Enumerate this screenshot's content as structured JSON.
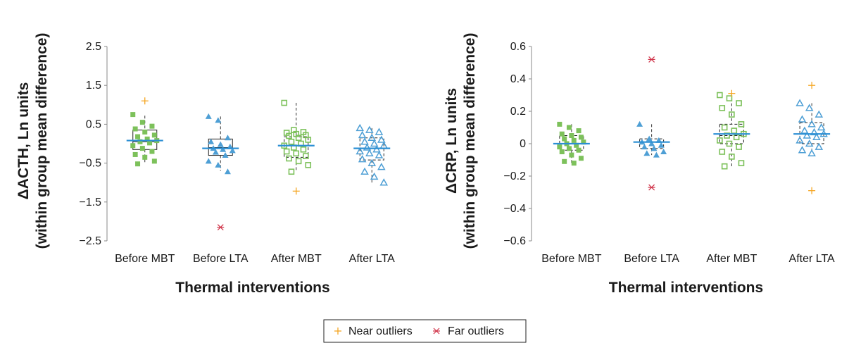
{
  "chart_data": [
    {
      "type": "scatter",
      "xlabel": "Thermal interventions",
      "ylabel": "ΔACTH, Ln units (within group mean difference)",
      "ylabel_lines": [
        "ΔACTH, Ln units",
        "(within group mean difference)"
      ],
      "categories": [
        "Before MBT",
        "Before LTA",
        "After MBT",
        "After LTA"
      ],
      "ylim": [
        -2.5,
        2.5
      ],
      "yticks": [
        2.5,
        1.5,
        0.5,
        -0.5,
        -1.5,
        -2.5
      ],
      "ytick_labels": [
        "2.5",
        "1.5",
        "0.5",
        "−0.5",
        "−1.5",
        "−2.5"
      ],
      "grid": false,
      "groups": [
        {
          "category": "Before MBT",
          "marker": "square-filled",
          "color": "#7dc15b",
          "mean": 0.08,
          "box": {
            "q1": -0.15,
            "median": 0.05,
            "q3": 0.35
          },
          "whisker": {
            "low": -0.5,
            "high": 0.72
          },
          "points": [
            0.75,
            0.55,
            0.45,
            0.38,
            0.3,
            0.22,
            0.18,
            0.12,
            0.08,
            0.05,
            0.02,
            -0.05,
            -0.12,
            -0.2,
            -0.28,
            -0.35,
            -0.45,
            -0.52
          ]
        },
        {
          "category": "Before LTA",
          "marker": "triangle-filled",
          "color": "#4e9fd5",
          "mean": -0.12,
          "box": {
            "q1": -0.3,
            "median": -0.1,
            "q3": 0.12
          },
          "whisker": {
            "low": -0.7,
            "high": 0.7
          },
          "points": [
            0.7,
            0.6,
            0.15,
            0.05,
            -0.02,
            -0.08,
            -0.12,
            -0.15,
            -0.18,
            -0.22,
            -0.3,
            -0.45,
            -0.55,
            -0.72
          ]
        },
        {
          "category": "After MBT",
          "marker": "square-open",
          "color": "#7dc15b",
          "mean": -0.05,
          "box": {
            "q1": -0.35,
            "median": -0.05,
            "q3": 0.18
          },
          "whisker": {
            "low": -0.7,
            "high": 1.05
          },
          "points": [
            1.05,
            0.35,
            0.3,
            0.28,
            0.25,
            0.22,
            0.2,
            0.15,
            0.1,
            0.05,
            0.0,
            -0.05,
            -0.1,
            -0.15,
            -0.2,
            -0.25,
            -0.32,
            -0.38,
            -0.45,
            -0.55,
            -0.72
          ]
        },
        {
          "category": "After LTA",
          "marker": "triangle-open",
          "color": "#4e9fd5",
          "mean": -0.12,
          "box": {
            "q1": -0.42,
            "median": -0.12,
            "q3": 0.15
          },
          "whisker": {
            "low": -1.0,
            "high": 0.4
          },
          "points": [
            0.4,
            0.35,
            0.3,
            0.22,
            0.15,
            0.1,
            0.05,
            0.0,
            -0.05,
            -0.1,
            -0.15,
            -0.2,
            -0.25,
            -0.3,
            -0.4,
            -0.5,
            -0.6,
            -0.72,
            -0.85,
            -1.0
          ]
        }
      ],
      "near_outliers": [
        {
          "category": "Before MBT",
          "y": 1.1
        },
        {
          "category": "After MBT",
          "y": -1.22
        }
      ],
      "far_outliers": [
        {
          "category": "Before LTA",
          "y": -2.15
        }
      ]
    },
    {
      "type": "scatter",
      "xlabel": "Thermal interventions",
      "ylabel": "ΔCRP, Ln units (within group mean difference)",
      "ylabel_lines": [
        "ΔCRP, Ln units",
        "(within group mean difference)"
      ],
      "categories": [
        "Before MBT",
        "Before LTA",
        "After MBT",
        "After LTA"
      ],
      "ylim": [
        -0.6,
        0.6
      ],
      "yticks": [
        0.6,
        0.4,
        0.2,
        0,
        -0.2,
        -0.4,
        -0.6
      ],
      "ytick_labels": [
        "0.6",
        "0.4",
        "0.2",
        "0",
        "−0.2",
        "−0.4",
        "−0.6"
      ],
      "grid": false,
      "groups": [
        {
          "category": "Before MBT",
          "marker": "square-filled",
          "color": "#7dc15b",
          "mean": 0.0,
          "box": {
            "q1": -0.04,
            "median": 0.0,
            "q3": 0.05
          },
          "whisker": {
            "low": -0.12,
            "high": 0.12
          },
          "points": [
            0.12,
            0.1,
            0.08,
            0.06,
            0.05,
            0.04,
            0.03,
            0.02,
            0.01,
            0.0,
            -0.01,
            -0.02,
            -0.03,
            -0.04,
            -0.05,
            -0.07,
            -0.09,
            -0.11,
            -0.12
          ]
        },
        {
          "category": "Before LTA",
          "marker": "triangle-filled",
          "color": "#4e9fd5",
          "mean": 0.01,
          "box": {
            "q1": -0.03,
            "median": 0.01,
            "q3": 0.03
          },
          "whisker": {
            "low": -0.07,
            "high": 0.12
          },
          "points": [
            0.12,
            0.03,
            0.02,
            0.01,
            0.0,
            -0.01,
            -0.02,
            -0.03,
            -0.05,
            -0.06,
            -0.07
          ]
        },
        {
          "category": "After MBT",
          "marker": "square-open",
          "color": "#7dc15b",
          "mean": 0.06,
          "box": {
            "q1": 0.0,
            "median": 0.05,
            "q3": 0.12
          },
          "whisker": {
            "low": -0.14,
            "high": 0.31
          },
          "points": [
            0.3,
            0.28,
            0.25,
            0.22,
            0.18,
            0.12,
            0.1,
            0.08,
            0.06,
            0.05,
            0.04,
            0.02,
            0.0,
            -0.02,
            -0.05,
            -0.08,
            -0.12,
            -0.14
          ]
        },
        {
          "category": "After LTA",
          "marker": "triangle-open",
          "color": "#4e9fd5",
          "mean": 0.06,
          "box": {
            "q1": 0.0,
            "median": 0.06,
            "q3": 0.13
          },
          "whisker": {
            "low": -0.06,
            "high": 0.25
          },
          "points": [
            0.25,
            0.22,
            0.18,
            0.15,
            0.12,
            0.1,
            0.08,
            0.07,
            0.06,
            0.05,
            0.04,
            0.02,
            0.0,
            -0.02,
            -0.04,
            -0.06
          ]
        }
      ],
      "near_outliers": [
        {
          "category": "After MBT",
          "y": 0.31
        },
        {
          "category": "After LTA",
          "y": 0.36
        },
        {
          "category": "After LTA",
          "y": -0.29
        }
      ],
      "far_outliers": [
        {
          "category": "Before LTA",
          "y": 0.52
        },
        {
          "category": "Before LTA",
          "y": -0.27
        }
      ]
    }
  ],
  "legend": {
    "placement": "bottom-center",
    "items": [
      {
        "label": "Near outliers",
        "symbol": "plus",
        "color": "#f5a623"
      },
      {
        "label": "Far outliers",
        "symbol": "asterisk",
        "color": "#d0344a"
      }
    ]
  },
  "colors": {
    "mean_line": "#2b8fd4",
    "green": "#7dc15b",
    "blue": "#4e9fd5",
    "near": "#f5a623",
    "far": "#d0344a",
    "axis": "#8a8a8a"
  }
}
